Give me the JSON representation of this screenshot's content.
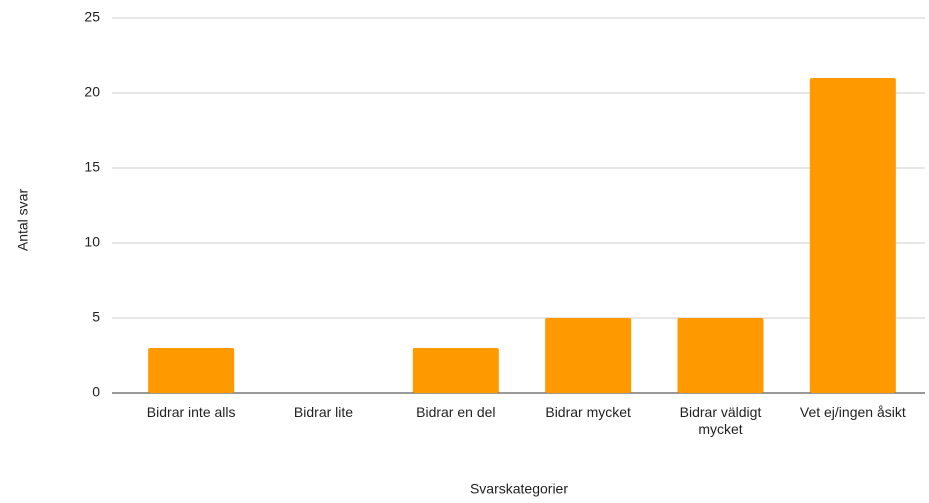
{
  "chart_data": {
    "type": "bar",
    "x_label": "Svarskategorier",
    "y_label": "Antal svar",
    "categories": [
      "Bidrar inte alls",
      "Bidrar lite",
      "Bidrar en del",
      "Bidrar mycket",
      "Bidrar väldigt mycket",
      "Vet ej/ingen åsikt"
    ],
    "values": [
      3,
      0,
      3,
      5,
      5,
      21
    ],
    "color": "#ff9900",
    "ylim": [
      0,
      25
    ],
    "yticks": [
      0,
      5,
      10,
      15,
      20,
      25
    ],
    "grid": true
  }
}
